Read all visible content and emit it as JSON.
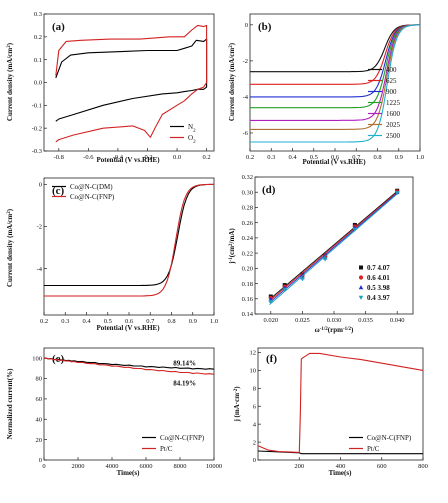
{
  "chart_data": [
    {
      "panel": "(a)",
      "type": "line",
      "xlabel": "Potential (V vs.RHE)",
      "ylabel": "Current density (mA/cm²)",
      "xlim": [
        -0.9,
        0.25
      ],
      "ylim": [
        -0.3,
        0.3
      ],
      "xticks": [
        -0.8,
        -0.6,
        -0.4,
        -0.2,
        0.0,
        0.2
      ],
      "yticks": [
        -0.3,
        -0.2,
        -0.1,
        0.0,
        0.1,
        0.2,
        0.3
      ],
      "xticklabels": [
        "-0.8",
        "-0.6",
        "-0.4",
        "-0.2",
        "0.0",
        "0.2"
      ],
      "yticklabels": [
        "-0.3",
        "-0.2",
        "-0.1",
        "0.0",
        "0.1",
        "0.2",
        "0.3"
      ],
      "legend_position": "bottom-right",
      "series": [
        {
          "name": "N₂",
          "color": "#000000",
          "x": [
            -0.82,
            -0.78,
            -0.72,
            -0.6,
            -0.4,
            -0.2,
            0.0,
            0.05,
            0.1,
            0.13,
            0.18,
            0.2,
            0.2,
            0.18,
            0.14,
            0.1,
            0.05,
            0.0,
            -0.1,
            -0.3,
            -0.5,
            -0.7,
            -0.8,
            -0.82
          ],
          "y": [
            0.02,
            0.09,
            0.12,
            0.13,
            0.135,
            0.14,
            0.14,
            0.15,
            0.16,
            0.185,
            0.18,
            0.19,
            -0.02,
            -0.03,
            -0.03,
            -0.035,
            -0.04,
            -0.045,
            -0.05,
            -0.07,
            -0.1,
            -0.14,
            -0.16,
            -0.17
          ]
        },
        {
          "name": "O₂",
          "color": "#d22222",
          "x": [
            -0.82,
            -0.8,
            -0.75,
            -0.65,
            -0.45,
            -0.25,
            -0.05,
            0.05,
            0.1,
            0.14,
            0.18,
            0.2,
            0.2,
            0.18,
            0.14,
            0.1,
            0.05,
            0.0,
            -0.1,
            -0.15,
            -0.18,
            -0.22,
            -0.3,
            -0.5,
            -0.7,
            -0.8,
            -0.82
          ],
          "y": [
            0.03,
            0.14,
            0.18,
            0.185,
            0.19,
            0.19,
            0.2,
            0.2,
            0.23,
            0.25,
            0.245,
            0.25,
            0.0,
            -0.02,
            -0.03,
            -0.05,
            -0.08,
            -0.1,
            -0.14,
            -0.2,
            -0.24,
            -0.21,
            -0.19,
            -0.2,
            -0.23,
            -0.25,
            -0.26
          ]
        }
      ]
    },
    {
      "panel": "(b)",
      "type": "line",
      "xlabel": "Potential (V vs.RHE)",
      "ylabel": "Current density (mA/cm²)",
      "xlim": [
        0.2,
        1.0
      ],
      "ylim": [
        -7,
        0.6
      ],
      "xticks": [
        0.2,
        0.3,
        0.4,
        0.5,
        0.6,
        0.7,
        0.8,
        0.9,
        1.0
      ],
      "yticks": [
        0,
        -2,
        -4,
        -6
      ],
      "xticklabels": [
        "0.2",
        "0.3",
        "0.4",
        "0.5",
        "0.6",
        "0.7",
        "0.8",
        "0.9",
        "1.0"
      ],
      "yticklabels": [
        "0",
        "-2",
        "-4",
        "-6"
      ],
      "legend_position": "right",
      "series": [
        {
          "name": "400",
          "color": "#111111",
          "limit": -2.6
        },
        {
          "name": "625",
          "color": "#e02020",
          "limit": -3.3
        },
        {
          "name": "900",
          "color": "#1f2fd0",
          "limit": -4.0
        },
        {
          "name": "1225",
          "color": "#22a022",
          "limit": -4.6
        },
        {
          "name": "1600",
          "color": "#b020c0",
          "limit": -5.3
        },
        {
          "name": "2025",
          "color": "#b07030",
          "limit": -5.8
        },
        {
          "name": "2500",
          "color": "#20b0d0",
          "limit": -6.5
        }
      ],
      "half_wave_potential": 0.84
    },
    {
      "panel": "(c)",
      "type": "line",
      "xlabel": "Potential (V vs.RHE)",
      "ylabel": "Current density (mA/cm²)",
      "xlim": [
        0.2,
        1.0
      ],
      "ylim": [
        -6.2,
        0.3
      ],
      "xticks": [
        0.2,
        0.3,
        0.4,
        0.5,
        0.6,
        0.7,
        0.8,
        0.9,
        1.0
      ],
      "yticks": [
        0,
        -2,
        -4
      ],
      "xticklabels": [
        "0.2",
        "0.3",
        "0.4",
        "0.5",
        "0.6",
        "0.7",
        "0.8",
        "0.9",
        "1.0"
      ],
      "yticklabels": [
        "0",
        "-2",
        "-4"
      ],
      "legend_position": "top-left",
      "series": [
        {
          "name": "Co@N-C(DM)",
          "color": "#000000",
          "limit": -4.8,
          "half_wave": 0.83
        },
        {
          "name": "Co@N-C(FNP)",
          "color": "#d22222",
          "limit": -5.3,
          "half_wave": 0.82
        }
      ]
    },
    {
      "panel": "(d)",
      "type": "scatter",
      "xlabel": "ω⁻¹′²(rpm⁻¹′²)",
      "ylabel": "j⁻¹(cm²/mA)",
      "xlim": [
        0.0175,
        0.0425
      ],
      "ylim": [
        0.14,
        0.32
      ],
      "xticks": [
        0.02,
        0.025,
        0.03,
        0.035,
        0.04
      ],
      "yticks": [
        0.14,
        0.16,
        0.18,
        0.2,
        0.22,
        0.24,
        0.26,
        0.28,
        0.3,
        0.32
      ],
      "xticklabels": [
        "0.020",
        "0.025",
        "0.030",
        "0.035",
        "0.040"
      ],
      "yticklabels": [
        "0.14",
        "0.16",
        "0.18",
        "0.20",
        "0.22",
        "0.24",
        "0.26",
        "0.28",
        "0.30",
        "0.32"
      ],
      "legend_position": "bottom-right",
      "x": [
        0.02,
        0.0222,
        0.025,
        0.0286,
        0.0333,
        0.04
      ],
      "series": [
        {
          "name": "0.7  4.07",
          "color": "#111111",
          "marker": "square",
          "values": [
            0.163,
            0.178,
            0.192,
            0.217,
            0.257,
            0.302
          ]
        },
        {
          "name": "0.6  4.01",
          "color": "#e02020",
          "marker": "circle",
          "values": [
            0.161,
            0.176,
            0.19,
            0.216,
            0.255,
            0.301
          ]
        },
        {
          "name": "0.5  3.98",
          "color": "#1f2fd0",
          "marker": "triangle",
          "values": [
            0.159,
            0.174,
            0.188,
            0.214,
            0.253,
            0.3
          ]
        },
        {
          "name": "0.4  3.97",
          "color": "#20a0c0",
          "marker": "triangle-down",
          "values": [
            0.156,
            0.172,
            0.186,
            0.212,
            0.251,
            0.299
          ]
        }
      ]
    },
    {
      "panel": "(e)",
      "type": "line",
      "xlabel": "Time(s)",
      "ylabel": "Normalized current(%)",
      "xlim": [
        0,
        10000
      ],
      "ylim": [
        0,
        110
      ],
      "xticks": [
        0,
        2000,
        4000,
        6000,
        8000,
        10000
      ],
      "yticks": [
        0,
        20,
        40,
        60,
        80,
        100
      ],
      "xticklabels": [
        "0",
        "2000",
        "4000",
        "6000",
        "8000",
        "10000"
      ],
      "yticklabels": [
        "0",
        "20",
        "40",
        "60",
        "80",
        "100"
      ],
      "legend_position": "bottom-right",
      "annotations": [
        "89.14%",
        "84.19%"
      ],
      "series": [
        {
          "name": "Co@N-C(FNP)",
          "color": "#000000",
          "x": [
            0,
            1000,
            2000,
            4000,
            6000,
            8000,
            10000
          ],
          "values": [
            100,
            98.4,
            96.8,
            94.0,
            91.8,
            90.3,
            89.14
          ]
        },
        {
          "name": "Pt/C",
          "color": "#d22222",
          "x": [
            0,
            1000,
            2000,
            4000,
            6000,
            8000,
            10000
          ],
          "values": [
            100,
            98.0,
            96.0,
            92.5,
            89.0,
            86.2,
            84.19
          ]
        }
      ]
    },
    {
      "panel": "(f)",
      "type": "line",
      "xlabel": "Time(s)",
      "ylabel": "j (mA·cm⁻²)",
      "xlim": [
        0,
        800
      ],
      "ylim": [
        0,
        12.5
      ],
      "xticks": [
        200,
        400,
        600,
        800
      ],
      "yticks": [
        0,
        2,
        4,
        6,
        8,
        10,
        12
      ],
      "xticklabels": [
        "200",
        "400",
        "600",
        "800"
      ],
      "yticklabels": [
        "0",
        "2",
        "4",
        "6",
        "8",
        "10",
        "12"
      ],
      "legend_position": "bottom-right",
      "series": [
        {
          "name": "Co@N-C(FNP)",
          "color": "#000000",
          "x": [
            0,
            200,
            205,
            210,
            400,
            600,
            800
          ],
          "values": [
            1.0,
            0.8,
            0.75,
            0.7,
            0.7,
            0.7,
            0.7
          ]
        },
        {
          "name": "Pt/C",
          "color": "#d22222",
          "x": [
            0,
            50,
            100,
            150,
            200,
            205,
            210,
            250,
            300,
            400,
            500,
            600,
            700,
            800
          ],
          "values": [
            1.6,
            1.1,
            0.95,
            0.9,
            0.85,
            5.0,
            11.3,
            11.9,
            11.9,
            11.5,
            11.2,
            10.8,
            10.4,
            10.0
          ]
        }
      ]
    }
  ]
}
